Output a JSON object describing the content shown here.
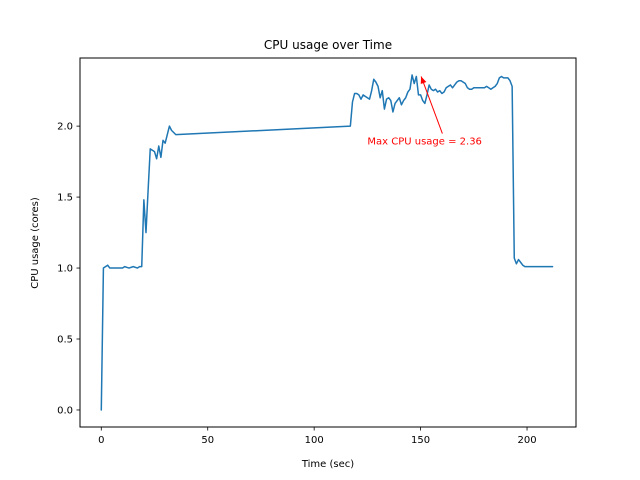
{
  "chart_data": {
    "type": "line",
    "title": "CPU usage over Time",
    "xlabel": "Time (sec)",
    "ylabel": "CPU usage (cores)",
    "xlim": [
      -10,
      223
    ],
    "ylim": [
      -0.12,
      2.48
    ],
    "xticks": [
      0,
      50,
      100,
      150,
      200
    ],
    "yticks": [
      0.0,
      0.5,
      1.0,
      1.5,
      2.0
    ],
    "xtick_labels": [
      "0",
      "50",
      "100",
      "150",
      "200"
    ],
    "ytick_labels": [
      "0.0",
      "0.5",
      "1.0",
      "1.5",
      "2.0"
    ],
    "grid": false,
    "series": [
      {
        "color": "#1f77b4",
        "x": [
          0,
          1,
          3,
          4,
          6,
          8,
          10,
          11,
          13,
          15,
          17,
          18,
          19,
          20,
          21,
          22,
          23,
          24,
          25,
          26,
          27,
          28,
          29,
          30,
          31,
          32,
          33,
          35,
          117,
          118,
          119,
          120,
          121,
          122,
          123,
          124,
          125,
          126,
          127,
          128,
          129,
          130,
          131,
          132,
          133,
          134,
          135,
          136,
          137,
          138,
          139,
          140,
          141,
          142,
          143,
          144,
          145,
          146,
          147,
          148,
          149,
          150,
          151,
          152,
          153,
          154,
          155,
          156,
          157,
          158,
          159,
          160,
          161,
          162,
          163,
          164,
          165,
          166,
          167,
          168,
          169,
          170,
          171,
          172,
          173,
          174,
          175,
          176,
          177,
          178,
          179,
          180,
          181,
          182,
          183,
          184,
          185,
          186,
          187,
          188,
          189,
          190,
          191,
          192,
          193,
          194,
          195,
          196,
          197,
          198,
          199,
          200,
          201,
          202,
          203,
          204,
          205,
          206,
          207,
          208,
          209,
          210,
          211,
          212
        ],
        "y": [
          0.0,
          1.0,
          1.02,
          1.0,
          1.0,
          1.0,
          1.0,
          1.01,
          1.0,
          1.01,
          1.0,
          1.01,
          1.01,
          1.48,
          1.25,
          1.55,
          1.84,
          1.83,
          1.82,
          1.77,
          1.86,
          1.78,
          1.9,
          1.88,
          1.94,
          2.0,
          1.97,
          1.94,
          2.0,
          2.17,
          2.23,
          2.23,
          2.22,
          2.19,
          2.22,
          2.21,
          2.2,
          2.19,
          2.25,
          2.33,
          2.31,
          2.28,
          2.2,
          2.25,
          2.12,
          2.19,
          2.2,
          2.18,
          2.1,
          2.16,
          2.18,
          2.2,
          2.15,
          2.18,
          2.2,
          2.24,
          2.26,
          2.36,
          2.3,
          2.35,
          2.22,
          2.22,
          2.18,
          2.16,
          2.22,
          2.29,
          2.26,
          2.25,
          2.26,
          2.24,
          2.25,
          2.23,
          2.24,
          2.27,
          2.28,
          2.29,
          2.27,
          2.29,
          2.31,
          2.32,
          2.32,
          2.31,
          2.3,
          2.27,
          2.26,
          2.26,
          2.27,
          2.27,
          2.27,
          2.27,
          2.27,
          2.27,
          2.28,
          2.27,
          2.26,
          2.27,
          2.28,
          2.3,
          2.34,
          2.35,
          2.34,
          2.34,
          2.34,
          2.32,
          2.28,
          1.07,
          1.03,
          1.06,
          1.04,
          1.02,
          1.01,
          1.01,
          1.01,
          1.01,
          1.01,
          1.01,
          1.01,
          1.01,
          1.01,
          1.01,
          1.01,
          1.01,
          1.01,
          1.01
        ]
      }
    ],
    "annotations": [
      {
        "text": "Max CPU usage = 2.36",
        "color": "#ff0000",
        "xy": [
          150,
          2.36
        ],
        "xytext": [
          125,
          1.87
        ]
      }
    ]
  }
}
